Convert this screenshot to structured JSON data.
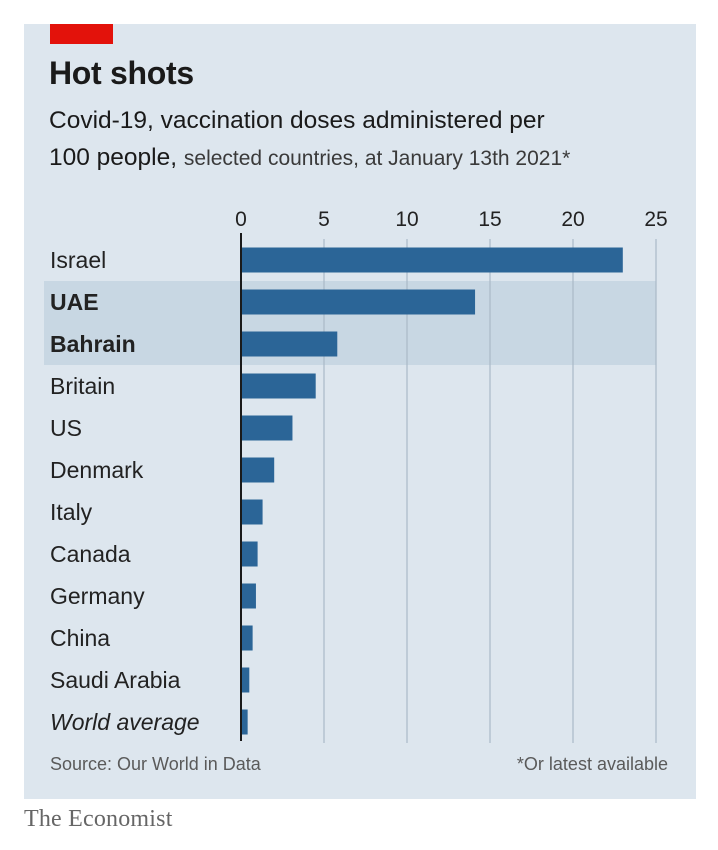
{
  "header": {
    "title": "Hot shots",
    "subtitle_main_1": "Covid-19, vaccination doses administered per",
    "subtitle_main_2": "100 people,",
    "subtitle_light": "selected countries, at January 13th 2021*"
  },
  "footer": {
    "source": "Source: Our World in Data",
    "footnote": "*Or latest available",
    "brand": "The Economist"
  },
  "colors": {
    "bar": "#2b6597",
    "panel_background": "#dde6ee",
    "highlight_band": "#c8d7e3",
    "gridline": "#aab9c8",
    "axis": "#1a1a1a",
    "red_tag": "#e3120b"
  },
  "chart_data": {
    "type": "bar",
    "orientation": "horizontal",
    "title": "Hot shots",
    "subtitle": "Covid-19, vaccination doses administered per 100 people, selected countries, at January 13th 2021*",
    "xlim": [
      0,
      25
    ],
    "xticks": [
      0,
      5,
      10,
      15,
      20,
      25
    ],
    "x_axis_position": "top",
    "grid": true,
    "highlighted": [
      "UAE",
      "Bahrain"
    ],
    "categories": [
      "Israel",
      "UAE",
      "Bahrain",
      "Britain",
      "US",
      "Denmark",
      "Italy",
      "Canada",
      "Germany",
      "China",
      "Saudi Arabia",
      "World average"
    ],
    "category_styles": [
      "normal",
      "bold",
      "bold",
      "normal",
      "normal",
      "normal",
      "normal",
      "normal",
      "normal",
      "normal",
      "normal",
      "italic"
    ],
    "values": [
      23.0,
      14.1,
      5.8,
      4.5,
      3.1,
      2.0,
      1.3,
      1.0,
      0.9,
      0.7,
      0.5,
      0.4
    ]
  }
}
